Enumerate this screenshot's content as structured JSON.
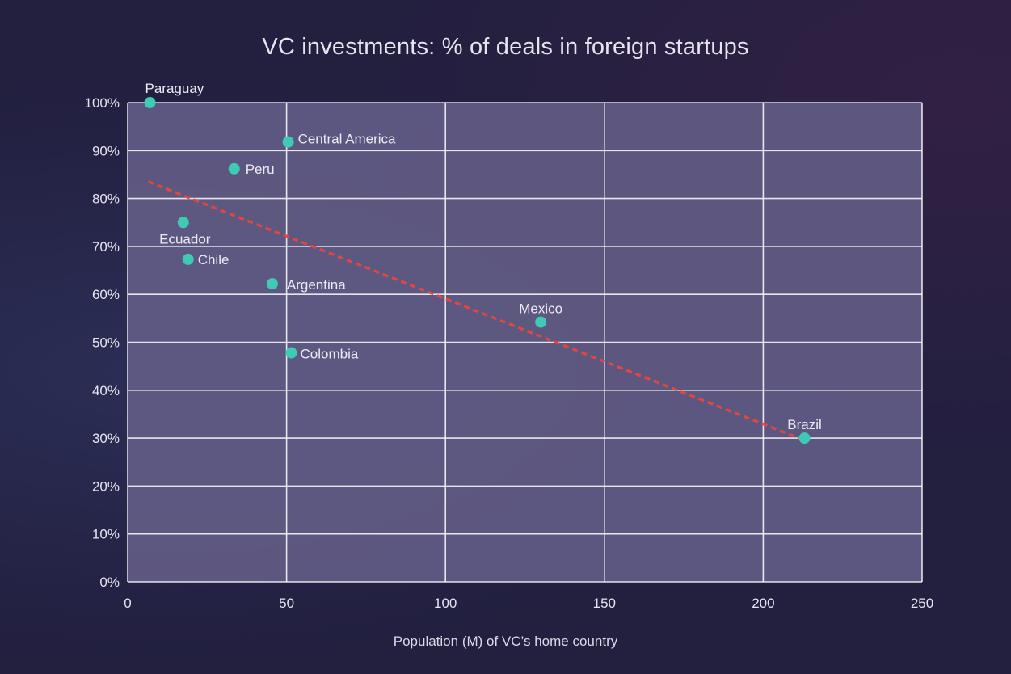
{
  "chart_data": {
    "type": "scatter",
    "title": "VC investments: % of deals in foreign startups",
    "xlabel": "Population (M) of VC’s home country",
    "ylabel": "",
    "xlim": [
      0,
      250
    ],
    "ylim": [
      0,
      100
    ],
    "x_ticks": [
      0,
      50,
      100,
      150,
      200,
      250
    ],
    "x_tick_labels": [
      "0",
      "50",
      "100",
      "150",
      "200",
      "250"
    ],
    "y_ticks": [
      0,
      10,
      20,
      30,
      40,
      50,
      60,
      70,
      80,
      90,
      100
    ],
    "y_tick_labels": [
      "0%",
      "10%",
      "20%",
      "30%",
      "40%",
      "50%",
      "60%",
      "70%",
      "80%",
      "90%",
      "100%"
    ],
    "grid": true,
    "points": [
      {
        "label": "Paraguay",
        "x": 7,
        "y": 100
      },
      {
        "label": "Central America",
        "x": 50.5,
        "y": 91.8
      },
      {
        "label": "Peru",
        "x": 33.5,
        "y": 86.2
      },
      {
        "label": "Ecuador",
        "x": 17.5,
        "y": 75
      },
      {
        "label": "Chile",
        "x": 19,
        "y": 67.3
      },
      {
        "label": "Argentina",
        "x": 45.5,
        "y": 62.2
      },
      {
        "label": "Mexico",
        "x": 130,
        "y": 54.2
      },
      {
        "label": "Colombia",
        "x": 51.5,
        "y": 47.8
      },
      {
        "label": "Brazil",
        "x": 213,
        "y": 30
      }
    ],
    "trendline": {
      "x": [
        6.5,
        212
      ],
      "y": [
        83.5,
        29.8
      ]
    },
    "colors": {
      "background": "#221f3f",
      "plot_area": "#625c86",
      "grid": "#ffffff",
      "points": "#3ecab3",
      "trendline": "#e3463e",
      "text": "#e6e4ef"
    }
  }
}
